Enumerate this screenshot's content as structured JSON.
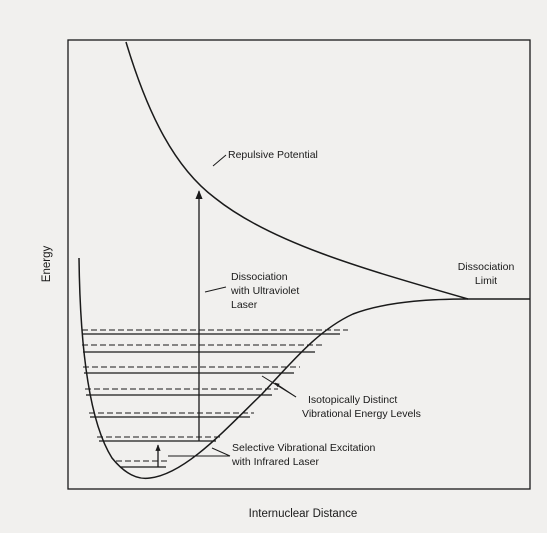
{
  "diagram": {
    "y_axis_label": "Energy",
    "x_axis_label": "Internuclear Distance",
    "labels": {
      "repulsive_potential": "Repulsive Potential",
      "dissociation_uv": [
        "Dissociation",
        "with Ultraviolet",
        "Laser"
      ],
      "dissociation_limit": [
        "Dissociation",
        "Limit"
      ],
      "isotopic_levels": [
        "Isotopically Distinct",
        "Vibrational Energy Levels"
      ],
      "selective_excitation": [
        "Selective Vibrational Excitation",
        "with Infrared Laser"
      ]
    }
  }
}
